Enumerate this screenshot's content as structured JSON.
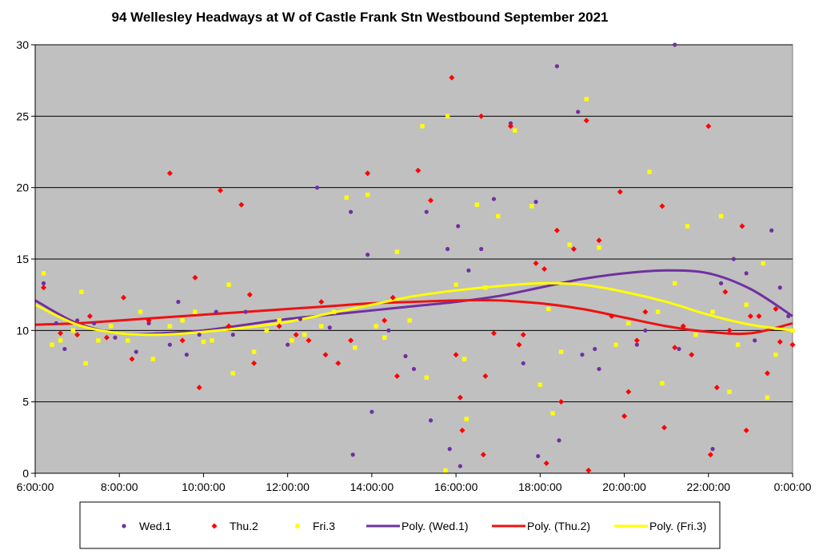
{
  "chart_data": {
    "type": "scatter",
    "title": "94 Wellesley Headways at W of Castle Frank Stn Westbound September 2021",
    "xlabel": "",
    "ylabel": "",
    "xlim": [
      6,
      24
    ],
    "ylim": [
      0,
      30
    ],
    "x_ticks": [
      {
        "value": 6,
        "label": "6:00:00"
      },
      {
        "value": 8,
        "label": "8:00:00"
      },
      {
        "value": 10,
        "label": "10:00:00"
      },
      {
        "value": 12,
        "label": "12:00:00"
      },
      {
        "value": 14,
        "label": "14:00:00"
      },
      {
        "value": 16,
        "label": "16:00:00"
      },
      {
        "value": 18,
        "label": "18:00:00"
      },
      {
        "value": 20,
        "label": "20:00:00"
      },
      {
        "value": 22,
        "label": "22:00:00"
      },
      {
        "value": 24,
        "label": "0:00:00"
      }
    ],
    "y_ticks": [
      0,
      5,
      10,
      15,
      20,
      25,
      30
    ],
    "grid": true,
    "legend_position": "bottom",
    "plot_background": "#c0c0c0",
    "series": [
      {
        "name": "Wed.1",
        "kind": "scatter",
        "marker": "circle",
        "color": "#7030a0",
        "points": [
          [
            6.2,
            13.3
          ],
          [
            6.5,
            10.5
          ],
          [
            6.7,
            8.7
          ],
          [
            7.0,
            10.7
          ],
          [
            7.4,
            10.5
          ],
          [
            7.9,
            9.5
          ],
          [
            8.4,
            8.5
          ],
          [
            8.7,
            10.5
          ],
          [
            9.2,
            9.0
          ],
          [
            9.4,
            12.0
          ],
          [
            9.6,
            8.3
          ],
          [
            9.9,
            9.7
          ],
          [
            10.3,
            11.3
          ],
          [
            10.7,
            9.7
          ],
          [
            11.0,
            11.3
          ],
          [
            11.5,
            10.0
          ],
          [
            12.0,
            9.0
          ],
          [
            12.3,
            10.8
          ],
          [
            12.7,
            20.0
          ],
          [
            13.0,
            10.2
          ],
          [
            13.5,
            18.3
          ],
          [
            13.55,
            1.3
          ],
          [
            13.9,
            15.3
          ],
          [
            14.0,
            4.3
          ],
          [
            14.4,
            10.0
          ],
          [
            14.8,
            8.2
          ],
          [
            15.0,
            7.3
          ],
          [
            15.3,
            18.3
          ],
          [
            15.4,
            3.7
          ],
          [
            15.8,
            15.7
          ],
          [
            15.85,
            1.7
          ],
          [
            16.05,
            17.3
          ],
          [
            16.1,
            0.5
          ],
          [
            16.3,
            14.2
          ],
          [
            16.6,
            15.7
          ],
          [
            16.9,
            19.2
          ],
          [
            17.3,
            24.5
          ],
          [
            17.6,
            7.7
          ],
          [
            17.9,
            19.0
          ],
          [
            17.95,
            1.2
          ],
          [
            18.4,
            28.5
          ],
          [
            18.45,
            2.3
          ],
          [
            18.9,
            25.3
          ],
          [
            19.0,
            8.3
          ],
          [
            19.3,
            8.7
          ],
          [
            19.4,
            7.3
          ],
          [
            20.3,
            9.0
          ],
          [
            20.5,
            10.0
          ],
          [
            21.2,
            30.0
          ],
          [
            21.3,
            8.7
          ],
          [
            22.1,
            1.7
          ],
          [
            22.3,
            13.3
          ],
          [
            22.6,
            15.0
          ],
          [
            22.9,
            14.0
          ],
          [
            23.1,
            9.3
          ],
          [
            23.5,
            17.0
          ],
          [
            23.7,
            13.0
          ],
          [
            23.9,
            11.0
          ]
        ]
      },
      {
        "name": "Thu.2",
        "kind": "scatter",
        "marker": "diamond",
        "color": "#ff0000",
        "points": [
          [
            6.2,
            13.0
          ],
          [
            6.6,
            9.8
          ],
          [
            7.0,
            9.7
          ],
          [
            7.3,
            11.0
          ],
          [
            7.7,
            9.5
          ],
          [
            8.1,
            12.3
          ],
          [
            8.3,
            8.0
          ],
          [
            8.7,
            10.7
          ],
          [
            9.2,
            21.0
          ],
          [
            9.5,
            9.3
          ],
          [
            9.8,
            13.7
          ],
          [
            9.9,
            6.0
          ],
          [
            10.4,
            19.8
          ],
          [
            10.6,
            10.3
          ],
          [
            10.9,
            18.8
          ],
          [
            11.1,
            12.5
          ],
          [
            11.2,
            7.7
          ],
          [
            11.8,
            10.3
          ],
          [
            12.2,
            9.7
          ],
          [
            12.5,
            9.3
          ],
          [
            12.8,
            12.0
          ],
          [
            12.9,
            8.3
          ],
          [
            13.2,
            7.7
          ],
          [
            13.5,
            9.3
          ],
          [
            13.9,
            21.0
          ],
          [
            14.3,
            10.7
          ],
          [
            14.5,
            12.3
          ],
          [
            14.6,
            6.8
          ],
          [
            15.1,
            21.2
          ],
          [
            15.4,
            19.1
          ],
          [
            15.9,
            27.7
          ],
          [
            16.0,
            8.3
          ],
          [
            16.1,
            5.3
          ],
          [
            16.15,
            3.0
          ],
          [
            16.6,
            25.0
          ],
          [
            16.65,
            1.3
          ],
          [
            16.7,
            6.8
          ],
          [
            16.9,
            9.8
          ],
          [
            17.3,
            24.3
          ],
          [
            17.5,
            9.0
          ],
          [
            17.6,
            9.7
          ],
          [
            17.9,
            14.7
          ],
          [
            18.1,
            14.3
          ],
          [
            18.15,
            0.7
          ],
          [
            18.4,
            17.0
          ],
          [
            18.5,
            5.0
          ],
          [
            18.8,
            15.7
          ],
          [
            19.1,
            24.7
          ],
          [
            19.15,
            0.2
          ],
          [
            19.4,
            16.3
          ],
          [
            19.7,
            11.0
          ],
          [
            19.9,
            19.7
          ],
          [
            20.0,
            4.0
          ],
          [
            20.1,
            5.7
          ],
          [
            20.3,
            9.3
          ],
          [
            20.5,
            11.3
          ],
          [
            20.9,
            18.7
          ],
          [
            20.95,
            3.2
          ],
          [
            21.2,
            8.8
          ],
          [
            21.4,
            10.3
          ],
          [
            21.6,
            8.3
          ],
          [
            22.0,
            24.3
          ],
          [
            22.05,
            1.3
          ],
          [
            22.2,
            6.0
          ],
          [
            22.4,
            12.7
          ],
          [
            22.5,
            10.0
          ],
          [
            22.8,
            17.3
          ],
          [
            22.9,
            3.0
          ],
          [
            23.0,
            11.0
          ],
          [
            23.2,
            11.0
          ],
          [
            23.4,
            7.0
          ],
          [
            23.6,
            11.5
          ],
          [
            23.7,
            9.2
          ],
          [
            24.0,
            9.0
          ]
        ]
      },
      {
        "name": "Fri.3",
        "kind": "scatter",
        "marker": "square",
        "color": "#ffff00",
        "points": [
          [
            6.2,
            14.0
          ],
          [
            6.4,
            9.0
          ],
          [
            6.6,
            9.3
          ],
          [
            6.9,
            10.0
          ],
          [
            7.1,
            12.7
          ],
          [
            7.2,
            7.7
          ],
          [
            7.5,
            9.3
          ],
          [
            7.8,
            10.3
          ],
          [
            8.2,
            9.3
          ],
          [
            8.5,
            11.3
          ],
          [
            8.8,
            8.0
          ],
          [
            9.2,
            10.3
          ],
          [
            9.5,
            10.7
          ],
          [
            9.8,
            11.3
          ],
          [
            10.0,
            9.2
          ],
          [
            10.2,
            9.3
          ],
          [
            10.6,
            13.2
          ],
          [
            10.7,
            7.0
          ],
          [
            11.2,
            8.5
          ],
          [
            11.5,
            10.0
          ],
          [
            11.8,
            10.7
          ],
          [
            12.1,
            9.3
          ],
          [
            12.4,
            9.7
          ],
          [
            12.8,
            10.3
          ],
          [
            13.1,
            11.3
          ],
          [
            13.4,
            19.3
          ],
          [
            13.6,
            8.8
          ],
          [
            13.9,
            19.5
          ],
          [
            14.1,
            10.3
          ],
          [
            14.3,
            9.5
          ],
          [
            14.6,
            15.5
          ],
          [
            14.9,
            10.7
          ],
          [
            15.2,
            24.3
          ],
          [
            15.3,
            6.7
          ],
          [
            15.8,
            25.0
          ],
          [
            15.75,
            0.2
          ],
          [
            16.0,
            13.2
          ],
          [
            16.2,
            8.0
          ],
          [
            16.25,
            3.8
          ],
          [
            16.5,
            18.8
          ],
          [
            16.7,
            13.0
          ],
          [
            17.0,
            18.0
          ],
          [
            17.4,
            24.0
          ],
          [
            17.8,
            18.7
          ],
          [
            18.0,
            6.2
          ],
          [
            18.2,
            11.5
          ],
          [
            18.3,
            4.2
          ],
          [
            18.5,
            8.5
          ],
          [
            18.7,
            16.0
          ],
          [
            19.1,
            26.2
          ],
          [
            19.4,
            15.8
          ],
          [
            19.8,
            9.0
          ],
          [
            20.1,
            10.5
          ],
          [
            20.6,
            21.1
          ],
          [
            20.8,
            11.3
          ],
          [
            20.9,
            6.3
          ],
          [
            21.2,
            13.3
          ],
          [
            21.5,
            17.3
          ],
          [
            21.7,
            9.7
          ],
          [
            22.1,
            11.3
          ],
          [
            22.3,
            18.0
          ],
          [
            22.5,
            5.7
          ],
          [
            22.7,
            9.0
          ],
          [
            22.9,
            11.8
          ],
          [
            23.3,
            14.7
          ],
          [
            23.4,
            5.3
          ],
          [
            23.6,
            8.3
          ],
          [
            24.0,
            10.0
          ]
        ]
      },
      {
        "name": "Poly. (Wed.1)",
        "kind": "line",
        "color": "#7030a0",
        "points": [
          [
            6,
            12.1
          ],
          [
            7,
            10.5
          ],
          [
            8,
            9.8
          ],
          [
            9,
            9.8
          ],
          [
            10,
            10.0
          ],
          [
            11,
            10.4
          ],
          [
            12,
            10.8
          ],
          [
            13,
            11.1
          ],
          [
            14,
            11.4
          ],
          [
            15,
            11.7
          ],
          [
            16,
            12.0
          ],
          [
            17,
            12.4
          ],
          [
            18,
            13.0
          ],
          [
            19,
            13.6
          ],
          [
            20,
            14.0
          ],
          [
            21,
            14.2
          ],
          [
            22,
            14.0
          ],
          [
            23,
            12.9
          ],
          [
            24,
            11.0
          ]
        ]
      },
      {
        "name": "Poly. (Thu.2)",
        "kind": "line",
        "color": "#ee1111",
        "points": [
          [
            6,
            10.4
          ],
          [
            7,
            10.5
          ],
          [
            8,
            10.7
          ],
          [
            9,
            10.9
          ],
          [
            10,
            11.1
          ],
          [
            11,
            11.3
          ],
          [
            12,
            11.5
          ],
          [
            13,
            11.7
          ],
          [
            14,
            11.9
          ],
          [
            15,
            12.0
          ],
          [
            16,
            12.1
          ],
          [
            17,
            12.1
          ],
          [
            18,
            11.9
          ],
          [
            19,
            11.5
          ],
          [
            20,
            10.9
          ],
          [
            21,
            10.3
          ],
          [
            22,
            9.9
          ],
          [
            23,
            9.8
          ],
          [
            24,
            10.5
          ]
        ]
      },
      {
        "name": "Poly. (Fri.3)",
        "kind": "line",
        "color": "#ffff00",
        "points": [
          [
            6,
            11.8
          ],
          [
            7,
            10.4
          ],
          [
            8,
            9.8
          ],
          [
            9,
            9.7
          ],
          [
            10,
            9.9
          ],
          [
            11,
            10.2
          ],
          [
            12,
            10.6
          ],
          [
            13,
            11.2
          ],
          [
            14,
            11.8
          ],
          [
            15,
            12.4
          ],
          [
            16,
            12.8
          ],
          [
            17,
            13.1
          ],
          [
            18,
            13.3
          ],
          [
            19,
            13.2
          ],
          [
            20,
            12.7
          ],
          [
            21,
            12.0
          ],
          [
            22,
            11.1
          ],
          [
            23,
            10.4
          ],
          [
            24,
            10.0
          ]
        ]
      }
    ]
  }
}
